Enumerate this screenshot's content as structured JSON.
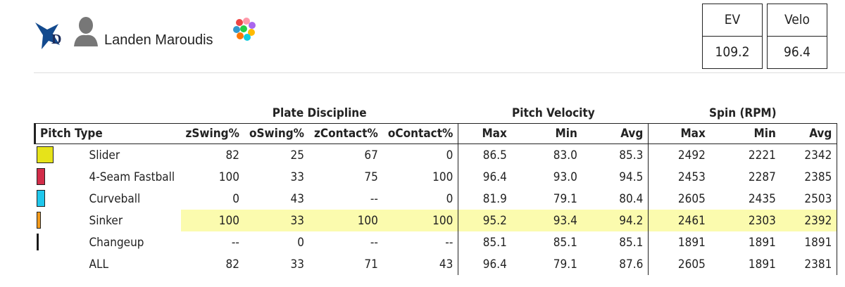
{
  "header": {
    "name": "Landen Maroudis"
  },
  "stats": [
    {
      "label": "EV",
      "value": "109.2"
    },
    {
      "label": "Velo",
      "value": "96.4"
    }
  ],
  "table": {
    "groups": [
      "Plate Discipline",
      "Pitch Velocity",
      "Spin (RPM)"
    ],
    "columns": [
      "Pitch Type",
      "zSwing%",
      "oSwing%",
      "zContact%",
      "oContact%",
      "Max",
      "Min",
      "Avg",
      "Max",
      "Min",
      "Avg"
    ],
    "rows": [
      {
        "pitch": "Slider",
        "color": "#e6e31a",
        "cells": [
          "82",
          "25",
          "67",
          "0",
          "86.5",
          "83.0",
          "85.3",
          "2492",
          "2221",
          "2342"
        ]
      },
      {
        "pitch": "4-Seam Fastball",
        "color": "#d22d49",
        "cells": [
          "100",
          "33",
          "75",
          "100",
          "96.4",
          "93.0",
          "94.5",
          "2453",
          "2287",
          "2385"
        ]
      },
      {
        "pitch": "Curveball",
        "color": "#1fc7ec",
        "cells": [
          "0",
          "43",
          "--",
          "0",
          "81.9",
          "79.1",
          "80.4",
          "2605",
          "2435",
          "2503"
        ]
      },
      {
        "pitch": "Sinker",
        "color": "#f29b1d",
        "highlight": true,
        "cells": [
          "100",
          "33",
          "100",
          "100",
          "95.2",
          "93.4",
          "94.2",
          "2461",
          "2303",
          "2392"
        ]
      },
      {
        "pitch": "Changeup",
        "color": "#111111",
        "cells": [
          "--",
          "0",
          "--",
          "--",
          "85.1",
          "85.1",
          "85.1",
          "1891",
          "1891",
          "1891"
        ]
      },
      {
        "pitch": "ALL",
        "cells": [
          "82",
          "33",
          "71",
          "43",
          "96.4",
          "79.1",
          "87.6",
          "2605",
          "1891",
          "2381"
        ]
      }
    ]
  }
}
